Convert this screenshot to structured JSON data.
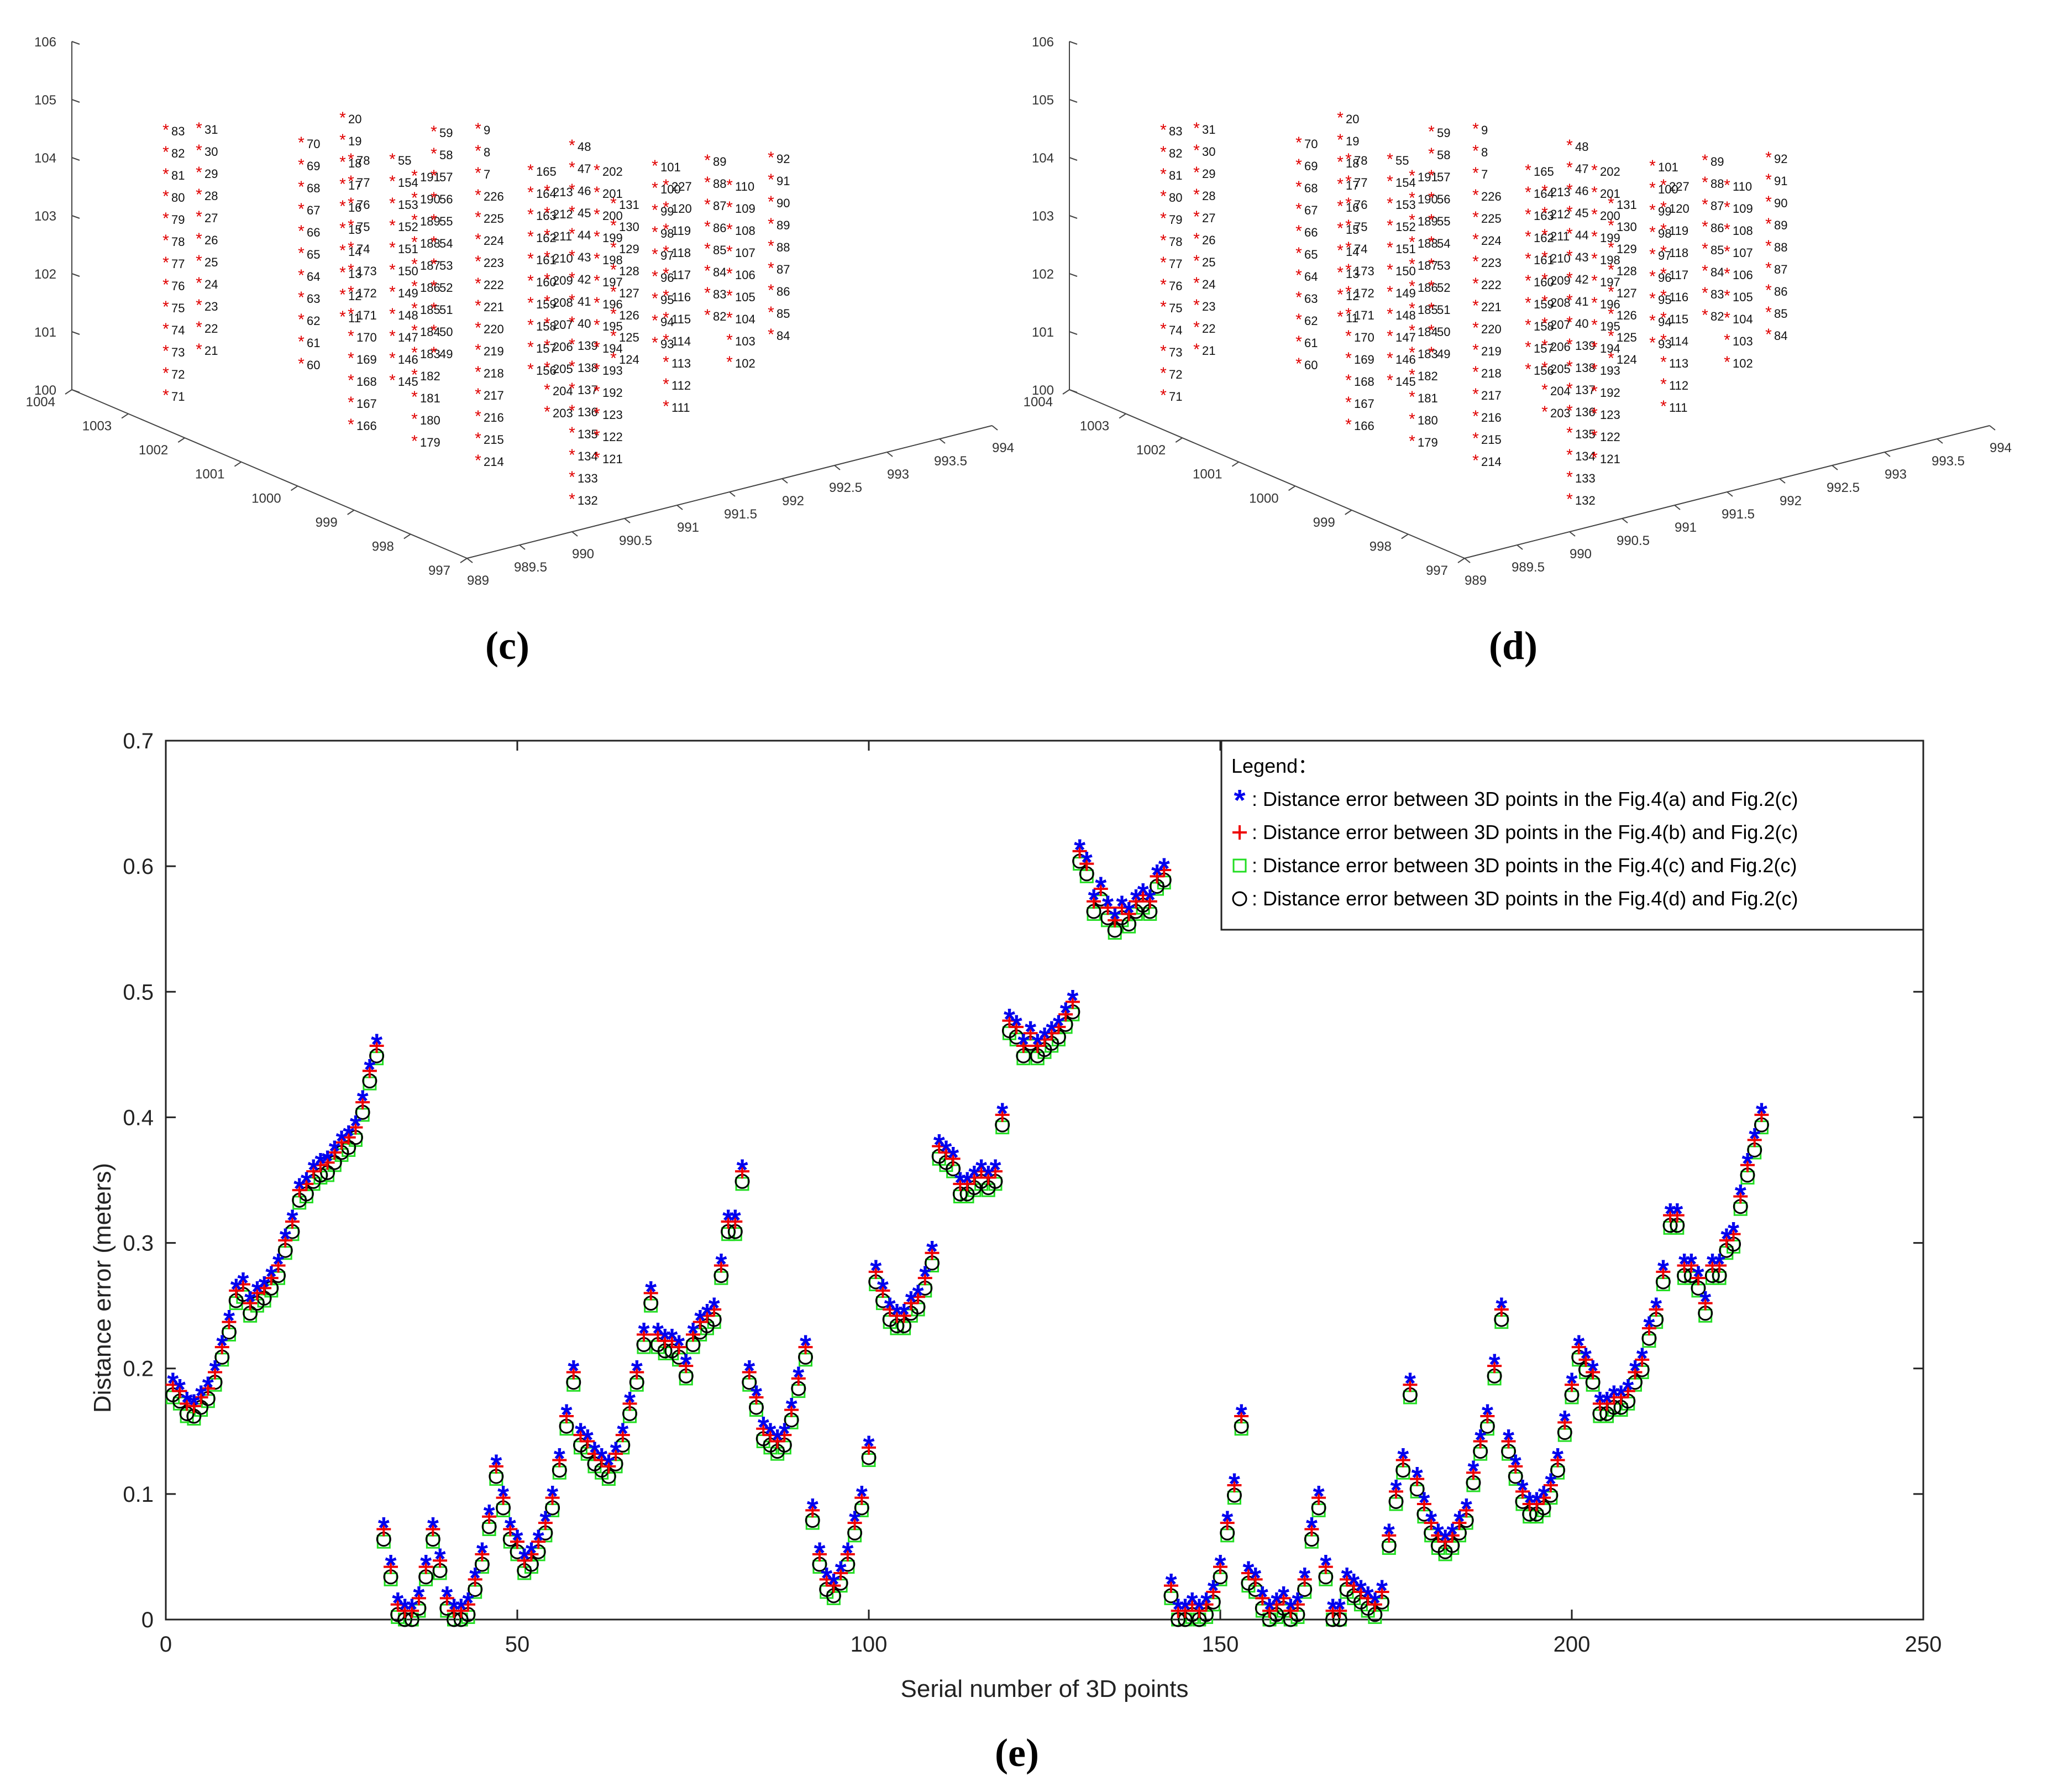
{
  "colors": {
    "blue": "#0000ee",
    "red": "#ee0000",
    "green": "#22dd22",
    "black": "#000000",
    "axis": "#333333"
  },
  "panel_c": {
    "caption": "(c)",
    "markers_color": "#e00000"
  },
  "panel_d": {
    "caption": "(d)",
    "markers_color": "#e00000"
  },
  "panel_e": {
    "caption": "(e)"
  },
  "chart_data": [
    {
      "type": "scatter3d",
      "title": "(c)",
      "z_ticks": [
        "100",
        "101",
        "102",
        "103",
        "104",
        "105",
        "106"
      ],
      "x_ticks": [
        "997",
        "998",
        "999",
        "1000",
        "1001",
        "1002",
        "1003",
        "1004"
      ],
      "y_ticks": [
        "989",
        "989.5",
        "990",
        "990.5",
        "991",
        "991.5",
        "992",
        "992.5",
        "993",
        "993.5",
        "994"
      ],
      "column_labels": [
        [
          "83",
          "82",
          "81",
          "80",
          "79",
          "78",
          "77",
          "76",
          "75",
          "74",
          "73",
          "72",
          "71"
        ],
        [
          "31",
          "30",
          "29",
          "28",
          "27",
          "26",
          "25",
          "24",
          "23",
          "22",
          "21"
        ],
        [
          "70",
          "69",
          "68",
          "67",
          "66",
          "65",
          "64",
          "63",
          "62",
          "61",
          "60"
        ],
        [
          "20",
          "19",
          "18",
          "17",
          "16",
          "15",
          "14",
          "13",
          "12",
          "11"
        ],
        [
          "78",
          "77",
          "76",
          "75",
          "74",
          "173",
          "172",
          "171",
          "170",
          "169",
          "168",
          "167",
          "166"
        ],
        [
          "55",
          "154",
          "153",
          "152",
          "151",
          "150",
          "149",
          "148",
          "147",
          "146",
          "145"
        ],
        [
          "191",
          "190",
          "189",
          "188",
          "187",
          "186",
          "185",
          "184",
          "183",
          "182",
          "181",
          "180",
          "179"
        ],
        [
          "59",
          "58",
          "57",
          "56",
          "55",
          "54",
          "53",
          "52",
          "51",
          "50",
          "49"
        ],
        [
          "9",
          "8",
          "7",
          "226",
          "225",
          "224",
          "223",
          "222",
          "221",
          "220",
          "219",
          "218",
          "217",
          "216",
          "215",
          "214"
        ],
        [
          "165",
          "164",
          "163",
          "162",
          "161",
          "160",
          "159",
          "158",
          "157",
          "156"
        ],
        [
          "213",
          "212",
          "211",
          "210",
          "209",
          "208",
          "207",
          "206",
          "205",
          "204",
          "203"
        ],
        [
          "48",
          "47",
          "46",
          "45",
          "44",
          "43",
          "42",
          "41",
          "40",
          "139",
          "138",
          "137",
          "136",
          "135",
          "134",
          "133",
          "132"
        ],
        [
          "202",
          "201",
          "200",
          "199",
          "198",
          "197",
          "196",
          "195",
          "194",
          "193",
          "192",
          "123",
          "122",
          "121"
        ],
        [
          "131",
          "130",
          "129",
          "128",
          "127",
          "126",
          "125",
          "124"
        ],
        [
          "101",
          "100",
          "99",
          "98",
          "97",
          "96",
          "95",
          "94",
          "93"
        ],
        [
          "227",
          "120",
          "119",
          "118",
          "117",
          "116",
          "115",
          "114",
          "113",
          "112",
          "111"
        ],
        [
          "89",
          "88",
          "87",
          "86",
          "85",
          "84",
          "83",
          "82"
        ],
        [
          "110",
          "109",
          "108",
          "107",
          "106",
          "105",
          "104",
          "103",
          "102"
        ],
        [
          "92",
          "91",
          "90",
          "89",
          "88",
          "87",
          "86",
          "85",
          "84"
        ]
      ]
    },
    {
      "type": "scatter3d",
      "title": "(d)",
      "z_ticks": [
        "100",
        "101",
        "102",
        "103",
        "104",
        "105",
        "106"
      ],
      "x_ticks": [
        "997",
        "998",
        "999",
        "1000",
        "1001",
        "1002",
        "1003",
        "1004"
      ],
      "y_ticks": [
        "989",
        "989.5",
        "990",
        "990.5",
        "991",
        "991.5",
        "992",
        "992.5",
        "993",
        "993.5",
        "994"
      ],
      "same_labels_as": "(c)"
    },
    {
      "type": "scatter",
      "title": "(e)",
      "xlabel": "Serial number of 3D points",
      "ylabel": "Distance error (meters)",
      "xlim": [
        0,
        250
      ],
      "ylim": [
        0,
        0.7
      ],
      "xticks": [
        0,
        50,
        100,
        150,
        200,
        250
      ],
      "yticks": [
        0,
        0.1,
        0.2,
        0.3,
        0.4,
        0.5,
        0.6,
        0.7
      ],
      "legend_title": "Legend：",
      "legend_position": "top-right",
      "series": [
        {
          "name": ": Distance error between 3D points in the Fig.4(a) and Fig.2(c)",
          "marker": "asterisk",
          "color": "#0000ee",
          "offset": 0.004
        },
        {
          "name": ": Distance error between 3D points in the Fig.4(b) and Fig.2(c)",
          "marker": "plus",
          "color": "#ee0000",
          "offset": 0.002
        },
        {
          "name": ": Distance error between 3D points in the Fig.4(c) and Fig.2(c)",
          "marker": "square",
          "color": "#22dd22",
          "offset": -0.008
        },
        {
          "name": ": Distance error between 3D points in the Fig.4(d) and Fig.2(c)",
          "marker": "circle",
          "color": "#000000",
          "offset": -0.006
        }
      ],
      "x": [
        1,
        2,
        3,
        4,
        5,
        6,
        7,
        8,
        9,
        10,
        11,
        12,
        13,
        14,
        15,
        16,
        17,
        18,
        19,
        20,
        21,
        22,
        23,
        24,
        25,
        26,
        27,
        28,
        29,
        30,
        31,
        32,
        33,
        34,
        35,
        36,
        37,
        38,
        39,
        40,
        41,
        42,
        43,
        44,
        45,
        46,
        47,
        48,
        49,
        50,
        51,
        52,
        53,
        54,
        55,
        56,
        57,
        58,
        59,
        60,
        61,
        62,
        63,
        64,
        65,
        66,
        67,
        68,
        69,
        70,
        71,
        72,
        73,
        74,
        75,
        76,
        77,
        78,
        79,
        80,
        81,
        82,
        83,
        84,
        85,
        86,
        87,
        88,
        89,
        90,
        91,
        92,
        93,
        94,
        95,
        96,
        97,
        98,
        99,
        100,
        101,
        102,
        103,
        104,
        105,
        106,
        107,
        108,
        109,
        110,
        111,
        112,
        113,
        114,
        115,
        116,
        117,
        118,
        119,
        120,
        121,
        122,
        123,
        124,
        125,
        126,
        127,
        128,
        129,
        130,
        131,
        132,
        133,
        134,
        135,
        136,
        137,
        138,
        139,
        140,
        141,
        142,
        143,
        144,
        145,
        146,
        147,
        148,
        149,
        150,
        151,
        152,
        153,
        154,
        155,
        156,
        157,
        158,
        159,
        160,
        161,
        162,
        163,
        164,
        165,
        166,
        167,
        168,
        169,
        170,
        171,
        172,
        173,
        174,
        175,
        176,
        177,
        178,
        179,
        180,
        181,
        182,
        183,
        184,
        185,
        186,
        187,
        188,
        189,
        190,
        191,
        192,
        193,
        194,
        195,
        196,
        197,
        198,
        199,
        200,
        201,
        202,
        203,
        204,
        205,
        206,
        207,
        208,
        209,
        210,
        211,
        212,
        213,
        214,
        215,
        216,
        217,
        218,
        219,
        220,
        221,
        222,
        223,
        224,
        225,
        226,
        227
      ],
      "values": [
        0.185,
        0.18,
        0.17,
        0.168,
        0.175,
        0.182,
        0.195,
        0.215,
        0.235,
        0.26,
        0.265,
        0.25,
        0.258,
        0.262,
        0.27,
        0.28,
        0.3,
        0.315,
        0.34,
        0.345,
        0.355,
        0.36,
        0.362,
        0.37,
        0.378,
        0.382,
        0.39,
        0.41,
        0.435,
        0.455,
        0.07,
        0.04,
        0.01,
        0.005,
        0.005,
        0.015,
        0.04,
        0.07,
        0.045,
        0.015,
        0.005,
        0.005,
        0.01,
        0.03,
        0.05,
        0.08,
        0.12,
        0.095,
        0.07,
        0.06,
        0.045,
        0.05,
        0.06,
        0.075,
        0.095,
        0.125,
        0.16,
        0.195,
        0.145,
        0.14,
        0.13,
        0.125,
        0.12,
        0.13,
        0.145,
        0.17,
        0.195,
        0.225,
        0.258,
        0.225,
        0.22,
        0.22,
        0.215,
        0.2,
        0.225,
        0.235,
        0.24,
        0.245,
        0.28,
        0.315,
        0.315,
        0.355,
        0.195,
        0.175,
        0.15,
        0.145,
        0.14,
        0.145,
        0.165,
        0.19,
        0.215,
        0.085,
        0.05,
        0.03,
        0.025,
        0.035,
        0.05,
        0.075,
        0.095,
        0.135,
        0.275,
        0.26,
        0.245,
        0.24,
        0.24,
        0.25,
        0.255,
        0.27,
        0.29,
        0.375,
        0.37,
        0.365,
        0.345,
        0.345,
        0.35,
        0.355,
        0.35,
        0.355,
        0.4,
        0.475,
        0.47,
        0.455,
        0.465,
        0.455,
        0.46,
        0.465,
        0.47,
        0.48,
        0.49,
        0.61,
        0.6,
        0.57,
        0.58,
        0.565,
        0.555,
        0.565,
        0.56,
        0.57,
        0.575,
        0.57,
        0.59,
        0.595,
        0.025,
        0.005,
        0.005,
        0.01,
        0.005,
        0.01,
        0.02,
        0.04,
        0.075,
        0.105,
        0.16,
        0.035,
        0.03,
        0.015,
        0.005,
        0.01,
        0.015,
        0.005,
        0.01,
        0.03,
        0.07,
        0.095,
        0.04,
        0.005,
        0.005,
        0.03,
        0.025,
        0.02,
        0.015,
        0.01,
        0.02,
        0.065,
        0.1,
        0.125,
        0.185,
        0.11,
        0.09,
        0.075,
        0.065,
        0.06,
        0.065,
        0.075,
        0.085,
        0.115,
        0.14,
        0.16,
        0.2,
        0.245,
        0.14,
        0.12,
        0.1,
        0.09,
        0.09,
        0.095,
        0.105,
        0.125,
        0.155,
        0.185,
        0.215,
        0.205,
        0.195,
        0.17,
        0.17,
        0.175,
        0.175,
        0.18,
        0.195,
        0.205,
        0.23,
        0.245,
        0.275,
        0.32,
        0.32,
        0.28,
        0.28,
        0.27,
        0.25,
        0.28,
        0.28,
        0.3,
        0.305,
        0.335,
        0.36,
        0.38,
        0.4
      ]
    }
  ]
}
